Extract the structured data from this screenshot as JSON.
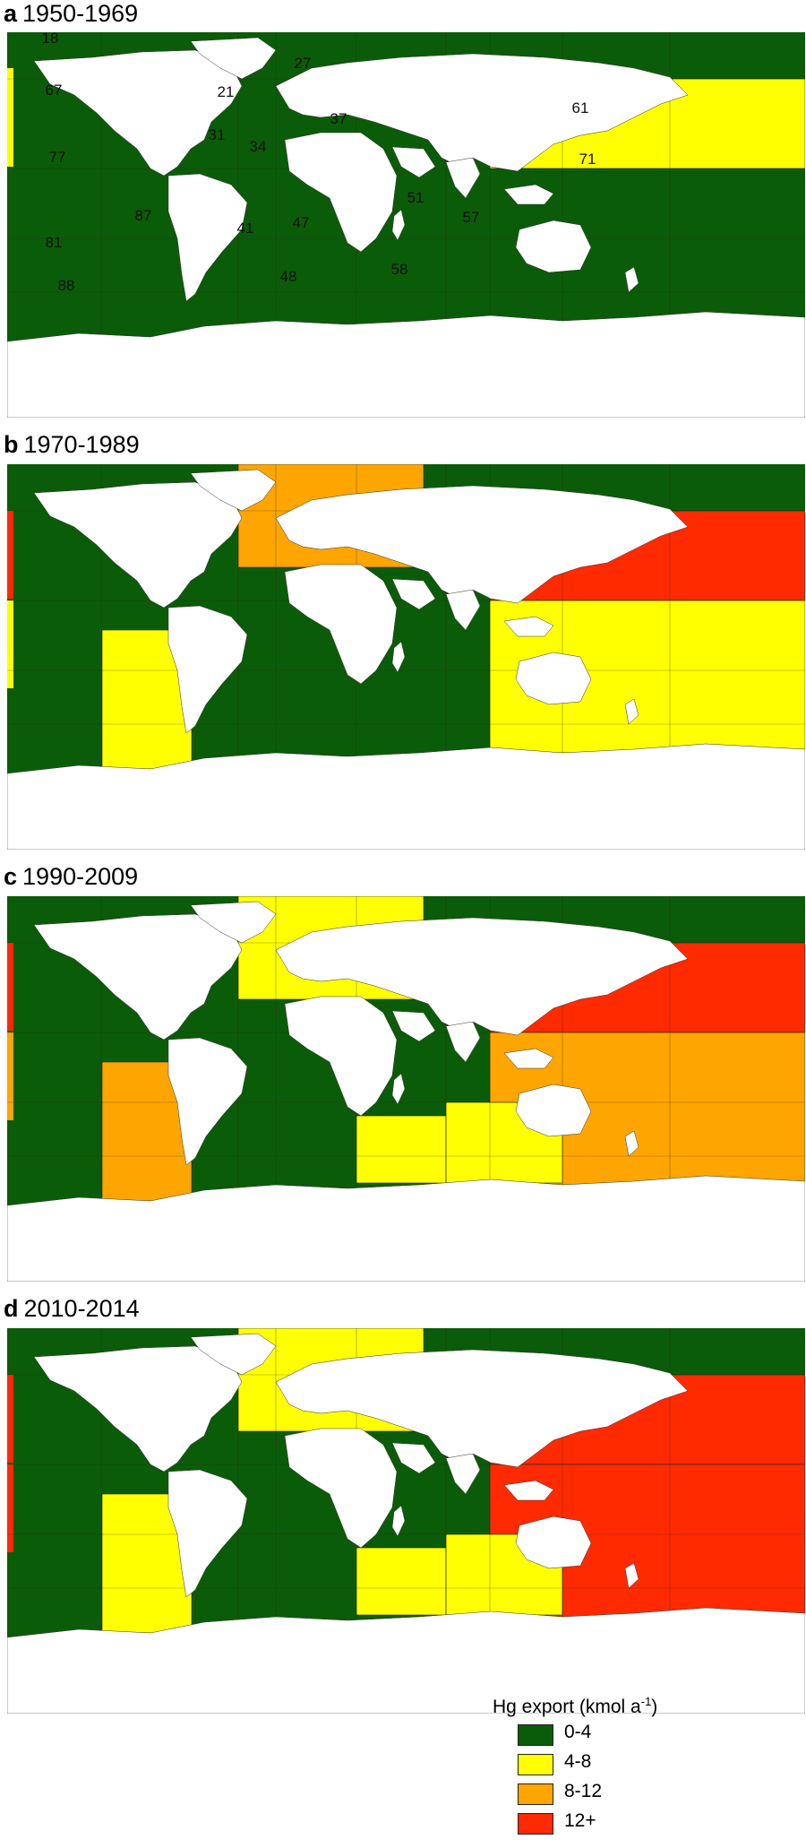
{
  "colors": {
    "ocean_green": "#0b5c08",
    "land": "#ffffff",
    "yellow": "#ffff00",
    "orange": "#ffa500",
    "red": "#ff2a00"
  },
  "panels": [
    {
      "letter": "a",
      "period": "1950-1969",
      "colored_regions": [
        {
          "fao_area": "61",
          "level": "yellow"
        },
        {
          "fao_area": "67",
          "level": "yellow",
          "note": "west-edge sliver"
        }
      ],
      "area_labels": [
        "18",
        "27",
        "67",
        "21",
        "37",
        "61",
        "31",
        "34",
        "77",
        "71",
        "87",
        "47",
        "51",
        "57",
        "41",
        "81",
        "48",
        "58",
        "88"
      ]
    },
    {
      "letter": "b",
      "period": "1970-1989",
      "colored_regions": [
        {
          "fao_area": "27",
          "level": "orange"
        },
        {
          "fao_area": "61",
          "level": "red"
        },
        {
          "fao_area": "71",
          "level": "yellow"
        },
        {
          "fao_area": "87",
          "level": "yellow"
        }
      ]
    },
    {
      "letter": "c",
      "period": "1990-2009",
      "colored_regions": [
        {
          "fao_area": "27",
          "level": "yellow"
        },
        {
          "fao_area": "61",
          "level": "red"
        },
        {
          "fao_area": "71",
          "level": "orange"
        },
        {
          "fao_area": "87",
          "level": "orange"
        },
        {
          "fao_area": "51",
          "level": "yellow"
        },
        {
          "fao_area": "57",
          "level": "yellow"
        }
      ]
    },
    {
      "letter": "d",
      "period": "2010-2014",
      "colored_regions": [
        {
          "fao_area": "27",
          "level": "yellow"
        },
        {
          "fao_area": "61",
          "level": "red"
        },
        {
          "fao_area": "71",
          "level": "red"
        },
        {
          "fao_area": "87",
          "level": "yellow"
        },
        {
          "fao_area": "51",
          "level": "yellow"
        },
        {
          "fao_area": "57",
          "level": "yellow"
        }
      ]
    }
  ],
  "legend": {
    "title_prefix": "Hg export (kmol a",
    "title_sup": "-1",
    "title_suffix": ")",
    "items": [
      {
        "label": "0-4",
        "level": "green"
      },
      {
        "label": "4-8",
        "level": "yellow"
      },
      {
        "label": "8-12",
        "level": "orange"
      },
      {
        "label": "12+",
        "level": "red"
      }
    ]
  }
}
